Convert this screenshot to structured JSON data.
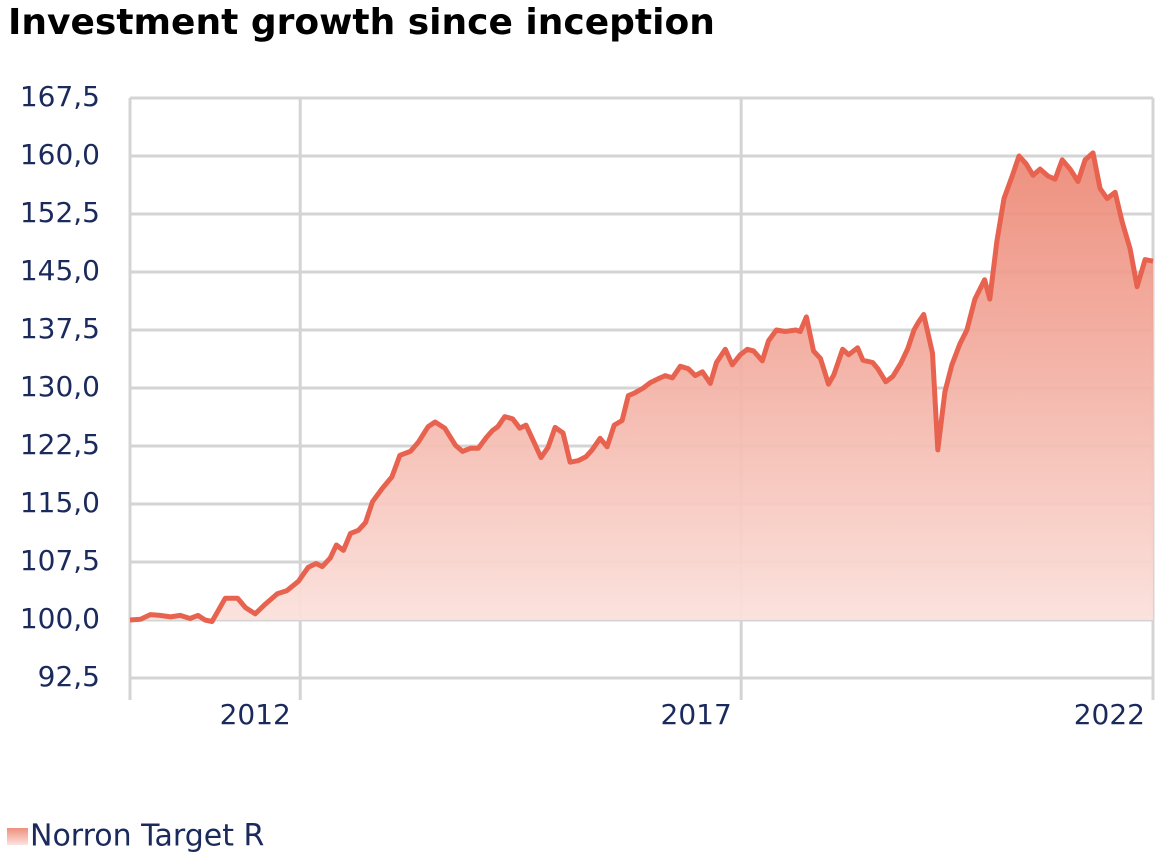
{
  "chart_data": {
    "type": "area",
    "title": "Investment growth since inception",
    "x": [
      2010.07,
      2010.19,
      2010.3,
      2010.41,
      2010.53,
      2010.64,
      2010.75,
      2010.84,
      2010.92,
      2011.0,
      2011.15,
      2011.29,
      2011.38,
      2011.49,
      2011.6,
      2011.74,
      2011.85,
      2011.98,
      2012.09,
      2012.18,
      2012.25,
      2012.34,
      2012.41,
      2012.49,
      2012.57,
      2012.66,
      2012.74,
      2012.82,
      2012.93,
      2013.04,
      2013.13,
      2013.25,
      2013.34,
      2013.45,
      2013.53,
      2013.64,
      2013.76,
      2013.84,
      2013.93,
      2014.02,
      2014.11,
      2014.18,
      2014.24,
      2014.32,
      2014.41,
      2014.49,
      2014.56,
      2014.65,
      2014.73,
      2014.81,
      2014.89,
      2014.98,
      2015.06,
      2015.15,
      2015.24,
      2015.31,
      2015.4,
      2015.48,
      2015.56,
      2015.65,
      2015.72,
      2015.8,
      2015.89,
      2015.97,
      2016.06,
      2016.14,
      2016.22,
      2016.31,
      2016.4,
      2016.48,
      2016.56,
      2016.65,
      2016.72,
      2016.82,
      2016.9,
      2016.99,
      2017.07,
      2017.14,
      2017.24,
      2017.31,
      2017.4,
      2017.5,
      2017.62,
      2017.67,
      2017.74,
      2017.82,
      2017.9,
      2017.99,
      2018.05,
      2018.15,
      2018.22,
      2018.32,
      2018.38,
      2018.49,
      2018.55,
      2018.64,
      2018.72,
      2018.81,
      2018.89,
      2018.96,
      2019.01,
      2019.07,
      2019.17,
      2019.23,
      2019.31,
      2019.39,
      2019.48,
      2019.56,
      2019.65,
      2019.76,
      2019.82,
      2019.9,
      2019.98,
      2020.07,
      2020.15,
      2020.23,
      2020.31,
      2020.39,
      2020.48,
      2020.56,
      2020.64,
      2020.73,
      2020.82,
      2020.9,
      2020.99,
      2021.07,
      2021.15,
      2021.24,
      2021.32,
      2021.41,
      2021.49,
      2021.58,
      2021.67
    ],
    "series": [
      {
        "name": "Norron Target R",
        "color": "#e8634f",
        "values": [
          100.0,
          100.1,
          100.7,
          100.6,
          100.4,
          100.6,
          100.2,
          100.6,
          100.0,
          99.8,
          102.8,
          102.8,
          101.6,
          100.8,
          102.0,
          103.4,
          103.8,
          105.0,
          106.8,
          107.3,
          106.9,
          108.0,
          109.7,
          109.0,
          111.2,
          111.6,
          112.6,
          115.3,
          117.0,
          118.5,
          121.3,
          121.8,
          123.0,
          125.0,
          125.6,
          124.8,
          122.6,
          121.8,
          122.2,
          122.2,
          123.6,
          124.5,
          125.0,
          126.3,
          126.0,
          124.8,
          125.2,
          123.0,
          121.0,
          122.3,
          124.9,
          124.2,
          120.4,
          120.6,
          121.1,
          122.0,
          123.5,
          122.4,
          125.2,
          125.8,
          129.0,
          129.4,
          130.0,
          130.7,
          131.2,
          131.6,
          131.3,
          132.8,
          132.5,
          131.6,
          132.1,
          130.6,
          133.3,
          135.0,
          133.0,
          134.3,
          135.0,
          134.8,
          133.5,
          136.1,
          137.5,
          137.3,
          137.5,
          137.3,
          139.2,
          134.8,
          133.8,
          130.5,
          131.7,
          135.0,
          134.3,
          135.2,
          133.6,
          133.3,
          132.5,
          130.8,
          131.5,
          133.2,
          135.1,
          137.5,
          138.5,
          139.5,
          134.5,
          122.0,
          129.5,
          133.0,
          135.7,
          137.5,
          141.5,
          144.0,
          141.5,
          149.0,
          154.5,
          157.3,
          160.0,
          159.0,
          157.5,
          158.3,
          157.4,
          157.0,
          159.5,
          158.3,
          156.7,
          159.5,
          160.4,
          155.8,
          154.5,
          155.3,
          151.5,
          148.0,
          143.1,
          146.6,
          146.4
        ]
      }
    ],
    "xlim": [
      2010.07,
      2021.67
    ],
    "xticks": [
      2012,
      2017,
      2022
    ],
    "ylim": [
      92.5,
      167.5
    ],
    "yticks": [
      {
        "value": 92.5,
        "label": "92,5"
      },
      {
        "value": 100,
        "label": "100,0"
      },
      {
        "value": 107.5,
        "label": "107,5"
      },
      {
        "value": 115,
        "label": "115,0"
      },
      {
        "value": 122.5,
        "label": "122,5"
      },
      {
        "value": 130,
        "label": "130,0"
      },
      {
        "value": 137.5,
        "label": "137,5"
      },
      {
        "value": 145,
        "label": "145,0"
      },
      {
        "value": 152.5,
        "label": "152,5"
      },
      {
        "value": 160,
        "label": "160,0"
      },
      {
        "value": 167.5,
        "label": "167,5"
      }
    ],
    "grid": true
  }
}
